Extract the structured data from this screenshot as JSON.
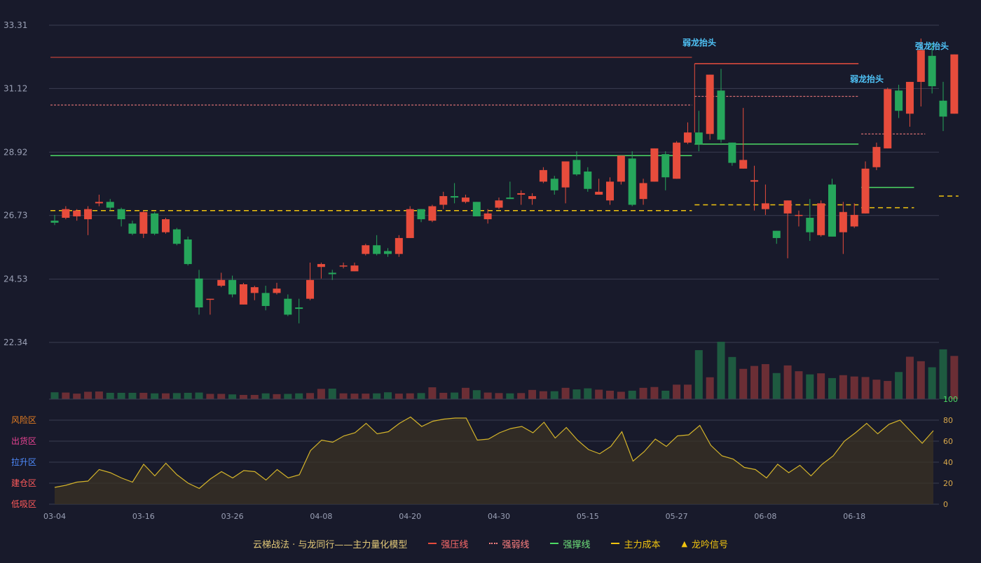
{
  "chart_data": {
    "type": "candlestick",
    "x_tick_labels": [
      "03-04",
      "03-16",
      "03-26",
      "04-08",
      "04-20",
      "04-30",
      "05-15",
      "05-27",
      "06-08",
      "06-18"
    ],
    "x_tick_indices": [
      0,
      8,
      16,
      24,
      32,
      40,
      48,
      56,
      64,
      72
    ],
    "price_axis_labels": [
      "33.31",
      "31.12",
      "28.92",
      "26.73",
      "24.53",
      "22.34"
    ],
    "price_range": [
      22.34,
      33.31
    ],
    "candles": [
      [
        26.55,
        26.48,
        26.75,
        26.4
      ],
      [
        26.65,
        26.95,
        27.05,
        26.6
      ],
      [
        26.7,
        26.9,
        26.95,
        26.55
      ],
      [
        26.6,
        26.95,
        27.05,
        26.05
      ],
      [
        27.15,
        27.2,
        27.45,
        27.05
      ],
      [
        27.2,
        27.0,
        27.3,
        26.9
      ],
      [
        26.95,
        26.6,
        27.0,
        26.35
      ],
      [
        26.45,
        26.1,
        26.55,
        26.05
      ],
      [
        26.1,
        26.85,
        26.9,
        25.95
      ],
      [
        26.8,
        26.1,
        26.85,
        26.05
      ],
      [
        26.15,
        26.6,
        26.65,
        26.1
      ],
      [
        26.25,
        25.75,
        26.3,
        25.7
      ],
      [
        25.9,
        25.05,
        26.0,
        25.0
      ],
      [
        24.55,
        23.55,
        24.85,
        23.3
      ],
      [
        23.85,
        23.85,
        23.85,
        23.3
      ],
      [
        24.3,
        24.5,
        24.75,
        24.25
      ],
      [
        24.5,
        24.0,
        24.65,
        23.9
      ],
      [
        23.65,
        24.35,
        24.4,
        23.65
      ],
      [
        24.05,
        24.25,
        24.3,
        23.8
      ],
      [
        24.05,
        23.6,
        24.3,
        23.45
      ],
      [
        24.05,
        24.2,
        24.4,
        24.0
      ],
      [
        23.85,
        23.3,
        24.0,
        23.25
      ],
      [
        23.55,
        23.5,
        23.85,
        23.0
      ],
      [
        23.85,
        24.5,
        25.1,
        23.8
      ],
      [
        24.95,
        25.05,
        25.1,
        24.55
      ],
      [
        24.75,
        24.7,
        24.85,
        24.5
      ],
      [
        25.0,
        25.0,
        25.1,
        24.9
      ],
      [
        24.8,
        25.0,
        25.1,
        24.8
      ],
      [
        25.4,
        25.7,
        25.75,
        25.35
      ],
      [
        25.7,
        25.4,
        26.05,
        25.35
      ],
      [
        25.5,
        25.4,
        25.6,
        25.3
      ],
      [
        25.4,
        25.95,
        26.05,
        25.3
      ],
      [
        25.95,
        26.95,
        27.05,
        25.95
      ],
      [
        26.95,
        26.6,
        26.95,
        26.5
      ],
      [
        26.55,
        27.05,
        27.1,
        26.5
      ],
      [
        27.1,
        27.4,
        27.55,
        26.95
      ],
      [
        27.4,
        27.35,
        27.85,
        27.15
      ],
      [
        27.2,
        27.35,
        27.45,
        27.15
      ],
      [
        27.2,
        26.7,
        27.2,
        26.7
      ],
      [
        26.6,
        26.8,
        26.95,
        26.45
      ],
      [
        27.0,
        27.25,
        27.35,
        26.95
      ],
      [
        27.35,
        27.3,
        27.9,
        27.3
      ],
      [
        27.45,
        27.5,
        27.6,
        27.1
      ],
      [
        27.3,
        27.4,
        27.5,
        27.1
      ],
      [
        27.9,
        28.3,
        28.4,
        27.85
      ],
      [
        28.0,
        27.6,
        28.1,
        27.45
      ],
      [
        27.7,
        28.6,
        28.6,
        27.15
      ],
      [
        28.65,
        28.15,
        28.95,
        28.1
      ],
      [
        28.25,
        27.65,
        28.4,
        27.55
      ],
      [
        27.45,
        27.55,
        28.0,
        27.45
      ],
      [
        27.25,
        27.9,
        28.05,
        27.1
      ],
      [
        27.9,
        28.8,
        28.8,
        27.8
      ],
      [
        28.7,
        27.1,
        28.95,
        27.05
      ],
      [
        27.3,
        27.85,
        28.0,
        27.1
      ],
      [
        27.9,
        29.05,
        29.05,
        27.9
      ],
      [
        28.85,
        28.05,
        28.95,
        27.6
      ],
      [
        28.0,
        29.25,
        29.3,
        28.0
      ],
      [
        29.25,
        29.6,
        29.95,
        29.2
      ],
      [
        29.6,
        29.2,
        30.35,
        28.95
      ],
      [
        29.55,
        31.6,
        31.6,
        29.35
      ],
      [
        31.05,
        29.35,
        31.8,
        29.25
      ],
      [
        29.25,
        28.55,
        29.25,
        28.45
      ],
      [
        28.35,
        28.65,
        30.45,
        28.35
      ],
      [
        27.9,
        27.95,
        28.45,
        26.9
      ],
      [
        26.95,
        27.15,
        27.8,
        26.75
      ],
      [
        26.2,
        25.95,
        26.2,
        25.75
      ],
      [
        26.8,
        27.25,
        27.25,
        25.25
      ],
      [
        26.75,
        26.75,
        26.9,
        26.35
      ],
      [
        26.65,
        26.15,
        27.3,
        25.85
      ],
      [
        26.05,
        27.15,
        27.25,
        26.0
      ],
      [
        27.8,
        26.0,
        28.0,
        26.0
      ],
      [
        26.15,
        26.85,
        27.2,
        25.4
      ],
      [
        26.35,
        26.75,
        27.15,
        26.3
      ],
      [
        26.8,
        28.35,
        28.6,
        26.8
      ],
      [
        28.4,
        29.1,
        29.25,
        28.3
      ],
      [
        29.05,
        31.1,
        31.15,
        29.05
      ],
      [
        31.05,
        30.35,
        31.25,
        30.1
      ],
      [
        30.25,
        31.35,
        31.35,
        29.8
      ],
      [
        31.35,
        32.45,
        32.85,
        30.5
      ],
      [
        32.25,
        31.2,
        32.7,
        30.95
      ],
      [
        30.7,
        30.15,
        31.35,
        29.65
      ],
      [
        30.25,
        32.3,
        32.3,
        30.25
      ]
    ],
    "volumes": [
      26,
      25,
      21,
      28,
      29,
      24,
      24,
      24,
      24,
      22,
      22,
      23,
      24,
      25,
      20,
      20,
      18,
      16,
      16,
      22,
      19,
      20,
      22,
      23,
      39,
      40,
      22,
      21,
      21,
      22,
      26,
      21,
      22,
      23,
      45,
      24,
      25,
      43,
      34,
      25,
      23,
      22,
      23,
      35,
      30,
      30,
      43,
      37,
      41,
      36,
      32,
      28,
      32,
      43,
      46,
      32,
      55,
      55,
      186,
      83,
      218,
      160,
      115,
      126,
      133,
      99,
      128,
      106,
      94,
      98,
      80,
      91,
      86,
      84,
      74,
      69,
      103,
      161,
      144,
      121,
      189,
      164
    ]
  },
  "labels": {
    "dragon_weak_1": "弱龙抬头",
    "dragon_weak_2": "弱龙抬头",
    "dragon_strong": "强龙抬头"
  },
  "lines": {
    "pressure_early": 32.2,
    "weak_early": 30.55,
    "support_early": 28.8,
    "cost_early": 26.9,
    "pressure_late": 31.98,
    "weak_late": 30.85,
    "support_late": 29.2,
    "cost_late": 27.1,
    "support_end": 27.7,
    "cost_end": 27.0,
    "cost_last": 27.4,
    "weak_last": 29.55,
    "support_last": 29.55
  },
  "oscillator": {
    "axis_labels": [
      "100",
      "80",
      "60",
      "40",
      "20",
      "0"
    ],
    "zones": [
      "风险区",
      "出货区",
      "拉升区",
      "建仓区",
      "低吸区"
    ],
    "values": [
      16,
      18,
      21,
      22,
      33,
      30,
      25,
      21,
      38,
      27,
      39,
      28,
      20,
      15,
      24,
      31,
      25,
      32,
      31,
      23,
      33,
      25,
      28,
      51,
      61,
      59,
      65,
      68,
      77,
      67,
      69,
      77,
      83,
      74,
      79,
      81,
      82,
      82,
      61,
      62,
      68,
      72,
      74,
      68,
      78,
      63,
      73,
      61,
      52,
      48,
      55,
      69,
      41,
      50,
      62,
      55,
      65,
      66,
      75,
      56,
      46,
      43,
      35,
      33,
      25,
      38,
      30,
      37,
      27,
      38,
      46,
      60,
      68,
      77,
      67,
      76,
      80,
      69,
      58,
      70
    ]
  },
  "legend": {
    "title": "云梯战法 · 与龙同行——主力量化模型",
    "strong_pressure": "强压线",
    "strong_weak": "强弱线",
    "strong_support": "强撑线",
    "main_cost": "主力成本",
    "dragon_signal": "龙吟信号"
  },
  "colors": {
    "up": "#e74c3c",
    "down": "#26a65b",
    "pressure": "#e74c3c",
    "weak": "#ff8080",
    "support": "#4cd964",
    "cost": "#f1c40f",
    "label": "#4fc3f7",
    "oscillator_line": "#d4b42a"
  }
}
